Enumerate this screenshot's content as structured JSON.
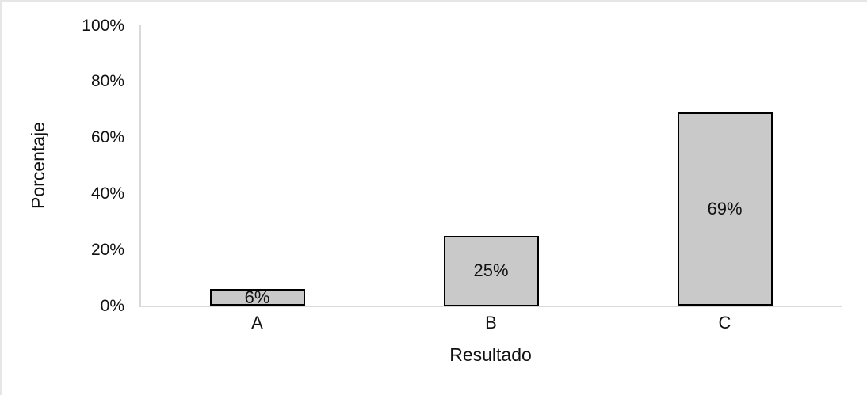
{
  "chart_data": {
    "type": "bar",
    "title": "",
    "xlabel": "Resultado",
    "ylabel": "Porcentaje",
    "categories": [
      "A",
      "B",
      "C"
    ],
    "values": [
      6,
      25,
      69
    ],
    "value_labels": [
      "6%",
      "25%",
      "69%"
    ],
    "y_ticks": [
      {
        "value": 0,
        "label": "0%"
      },
      {
        "value": 20,
        "label": "20%"
      },
      {
        "value": 40,
        "label": "40%"
      },
      {
        "value": 60,
        "label": "60%"
      },
      {
        "value": 80,
        "label": "80%"
      },
      {
        "value": 100,
        "label": "100%"
      }
    ],
    "ylim": [
      0,
      100
    ],
    "grid": "off",
    "legend": "none",
    "colors": {
      "bar_fill": "#c9c9c9",
      "bar_border": "#000000",
      "axis_line": "#d9d9d9",
      "text": "#111111"
    }
  }
}
